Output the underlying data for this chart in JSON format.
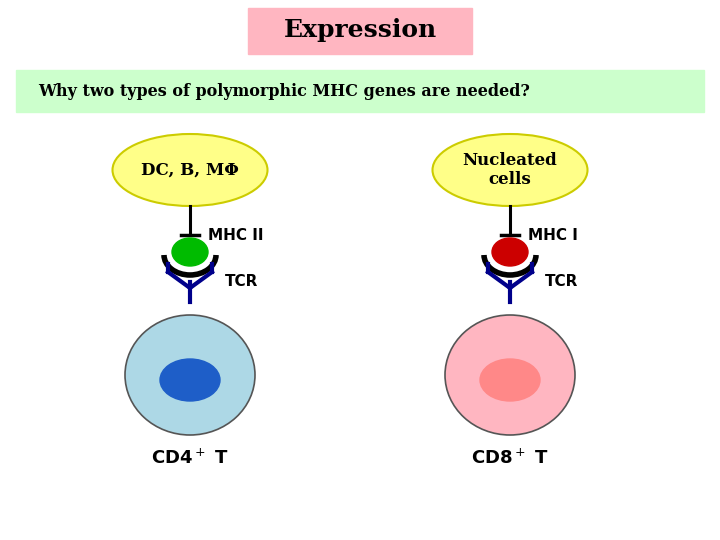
{
  "title": "Expression",
  "title_bg": "#FFB6C1",
  "subtitle": "Why two types of polymorphic MHC genes are needed?",
  "subtitle_bg": "#CCFFCC",
  "bg_color": "#FFFFFF",
  "left_label": "DC, B, MΦ",
  "right_label": "Nucleated\ncells",
  "mhc_left": "MHC II",
  "mhc_right": "MHC I",
  "tcr_label": "TCR",
  "cd4_label": "CD4",
  "cd8_label": "CD8",
  "t_label": " T",
  "plus_label": "+",
  "left_cell_color": "#ADD8E6",
  "right_cell_color": "#FFB6C1",
  "left_nucleus_color": "#1E5EC8",
  "right_nucleus_color": "#FF8888",
  "green_dot_color": "#00BB00",
  "red_dot_color": "#CC0000",
  "tcr_color": "#00008B",
  "mhc_line_color": "#000000",
  "text_color": "#000000",
  "yellow_fill": "#FFFF88",
  "yellow_edge": "#CCCC00",
  "cell_edge": "#555555"
}
